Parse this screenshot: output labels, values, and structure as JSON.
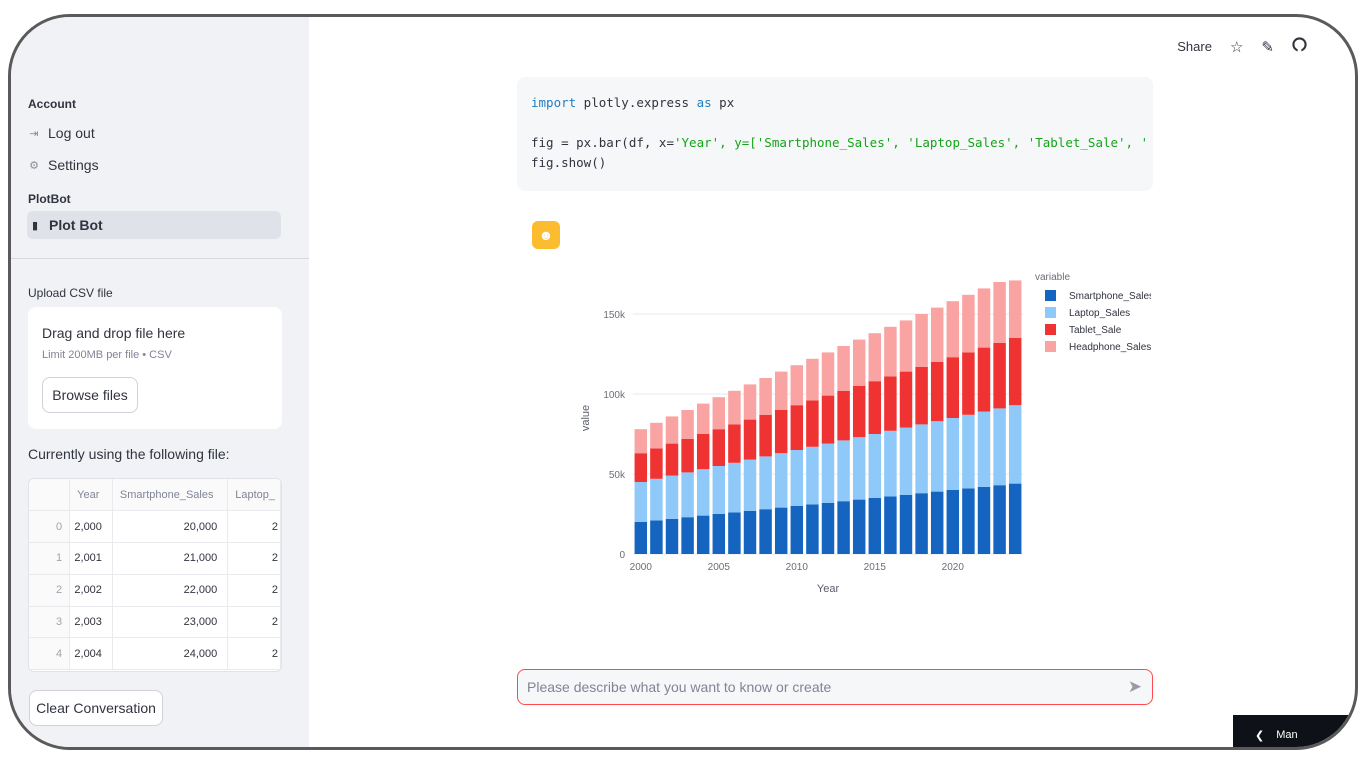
{
  "sidebar": {
    "account_label": "Account",
    "logout_label": "Log out",
    "settings_label": "Settings",
    "plotbot_section": "PlotBot",
    "plotbot_item": "Plot Bot",
    "upload_label": "Upload CSV file",
    "dropzone_title": "Drag and drop file here",
    "dropzone_sub": "Limit 200MB per file • CSV",
    "browse_label": "Browse files",
    "using_label": "Currently using the following file:",
    "table": {
      "columns": [
        "",
        "Year",
        "Smartphone_Sales",
        "Laptop_"
      ],
      "rows": [
        [
          "0",
          "2,000",
          "20,000",
          "2"
        ],
        [
          "1",
          "2,001",
          "21,000",
          "2"
        ],
        [
          "2",
          "2,002",
          "22,000",
          "2"
        ],
        [
          "3",
          "2,003",
          "23,000",
          "2"
        ],
        [
          "4",
          "2,004",
          "24,000",
          "2"
        ]
      ]
    },
    "clear_label": "Clear Conversation"
  },
  "header": {
    "share_label": "Share",
    "icons": [
      "star-icon",
      "edit-icon",
      "github-icon"
    ]
  },
  "code": {
    "line1": "import plotly.express as px",
    "line2_prefix": "fig = px.bar(df, x=",
    "line2_x": "'Year'",
    "line2_y": ", y=['Smartphone_Sales', 'Laptop_Sales', 'Tablet_Sale', '",
    "line3": "fig.show()"
  },
  "chat": {
    "placeholder": "Please describe what you want to know or create"
  },
  "manage": {
    "label": "Man"
  },
  "colors": {
    "accent": "#ff4b4b",
    "smartphone": "#1565c0",
    "laptop": "#8fc9f9",
    "tablet": "#ef3232",
    "headphone": "#f9a3a3"
  },
  "chart_data": {
    "type": "bar",
    "stacked": true,
    "title": "",
    "xlabel": "Year",
    "ylabel": "value",
    "legend_title": "variable",
    "legend_position": "top-right",
    "ylim": [
      0,
      170000
    ],
    "x_ticks": [
      "2000",
      "2005",
      "2010",
      "2015",
      "2020"
    ],
    "y_ticks": [
      {
        "value": 0,
        "label": "0"
      },
      {
        "value": 50000,
        "label": "50k"
      },
      {
        "value": 100000,
        "label": "100k"
      },
      {
        "value": 150000,
        "label": "150k"
      }
    ],
    "categories": [
      2000,
      2001,
      2002,
      2003,
      2004,
      2005,
      2006,
      2007,
      2008,
      2009,
      2010,
      2011,
      2012,
      2013,
      2014,
      2015,
      2016,
      2017,
      2018,
      2019,
      2020,
      2021,
      2022,
      2023,
      2024
    ],
    "series": [
      {
        "name": "Smartphone_Sales",
        "color": "#1565c0",
        "values": [
          20000,
          21000,
          22000,
          23000,
          24000,
          25000,
          26000,
          27000,
          28000,
          29000,
          30000,
          31000,
          32000,
          33000,
          34000,
          35000,
          36000,
          37000,
          38000,
          39000,
          40000,
          41000,
          42000,
          43000,
          44000
        ]
      },
      {
        "name": "Laptop_Sales",
        "color": "#8fc9f9",
        "values": [
          25000,
          26000,
          27000,
          28000,
          29000,
          30000,
          31000,
          32000,
          33000,
          34000,
          35000,
          36000,
          37000,
          38000,
          39000,
          40000,
          41000,
          42000,
          43000,
          44000,
          45000,
          46000,
          47000,
          48000,
          49000
        ]
      },
      {
        "name": "Tablet_Sale",
        "color": "#ef3232",
        "values": [
          18000,
          19000,
          20000,
          21000,
          22000,
          23000,
          24000,
          25000,
          26000,
          27000,
          28000,
          29000,
          30000,
          31000,
          32000,
          33000,
          34000,
          35000,
          36000,
          37000,
          38000,
          39000,
          40000,
          41000,
          42000
        ]
      },
      {
        "name": "Headphone_Sales",
        "color": "#f9a3a3",
        "values": [
          15000,
          16000,
          17000,
          18000,
          19000,
          20000,
          21000,
          22000,
          23000,
          24000,
          25000,
          26000,
          27000,
          28000,
          29000,
          30000,
          31000,
          32000,
          33000,
          34000,
          35000,
          36000,
          37000,
          38000,
          36000
        ]
      }
    ]
  }
}
